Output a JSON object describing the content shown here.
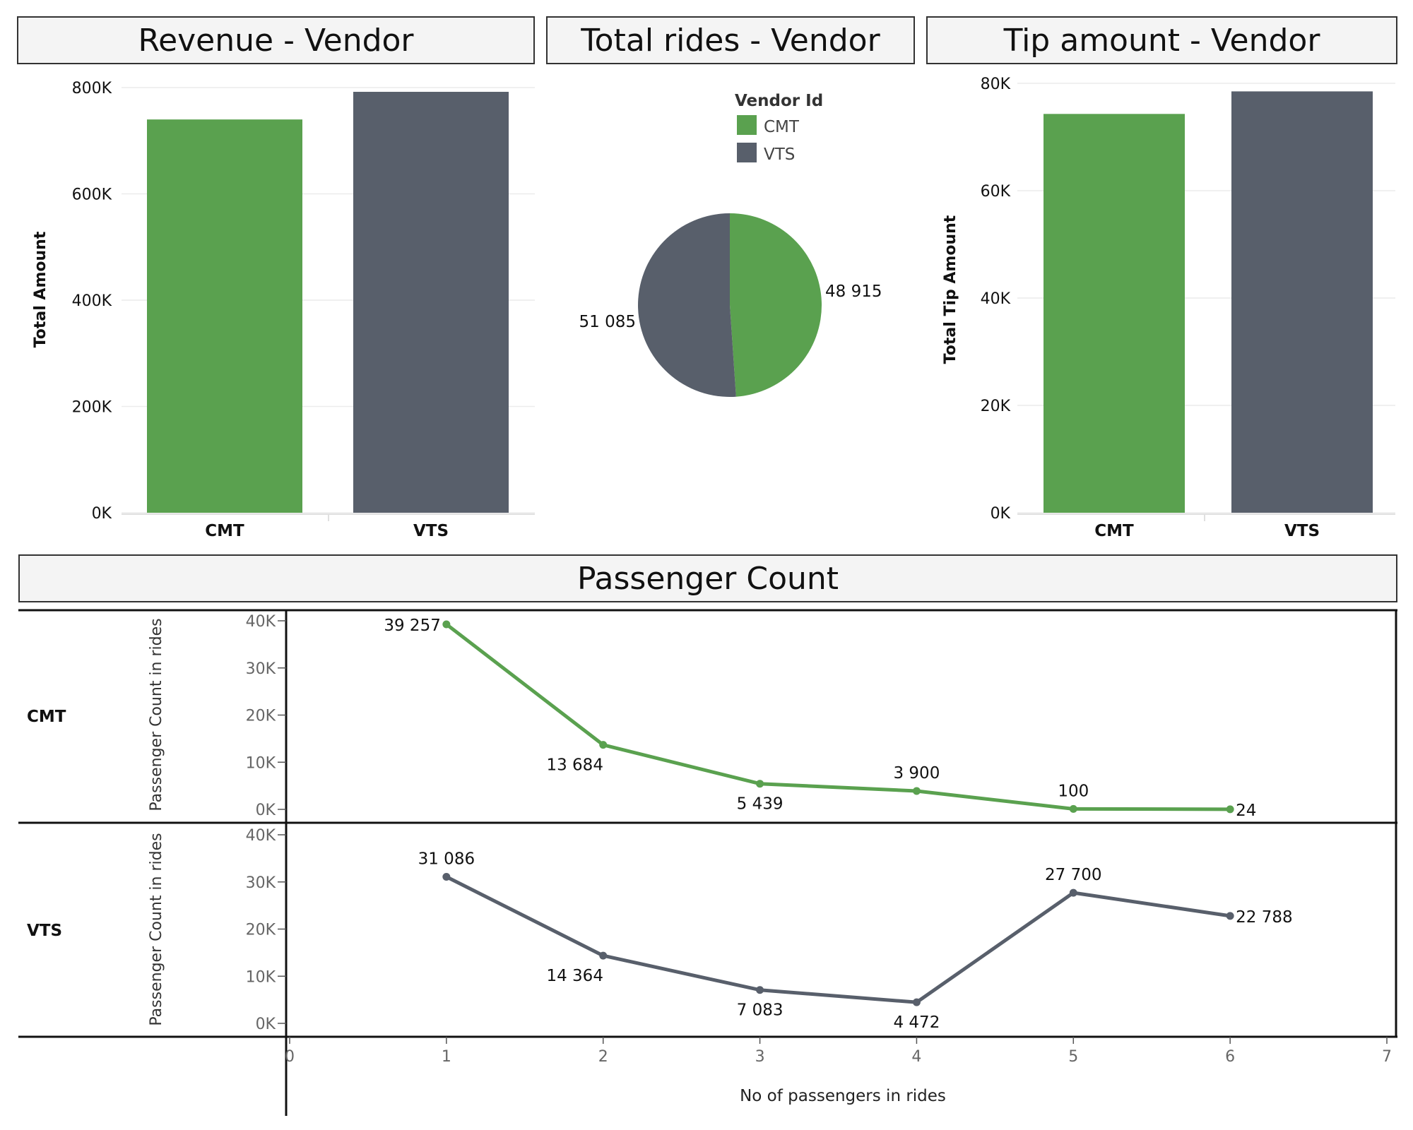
{
  "dashboard": {
    "revenue_title": "Revenue - Vendor",
    "rides_title": "Total rides - Vendor",
    "tip_title": "Tip amount - Vendor",
    "passenger_title": "Passenger Count"
  },
  "colors": {
    "CMT": "#5aa14f",
    "VTS": "#585f6b"
  },
  "chart_data": [
    {
      "type": "bar",
      "title": "Revenue - Vendor",
      "categories": [
        "CMT",
        "VTS"
      ],
      "values": [
        740000,
        792000
      ],
      "ylabel": "Total Amount",
      "ylim": [
        0,
        800000
      ],
      "yticks": [
        "0K",
        "200K",
        "400K",
        "600K",
        "800K"
      ]
    },
    {
      "type": "pie",
      "title": "Total rides - Vendor",
      "legend_title": "Vendor Id",
      "categories": [
        "CMT",
        "VTS"
      ],
      "values": [
        48915,
        51085
      ],
      "labels": [
        "48 915",
        "51 085"
      ]
    },
    {
      "type": "bar",
      "title": "Tip amount - Vendor",
      "categories": [
        "CMT",
        "VTS"
      ],
      "values": [
        74300,
        78500
      ],
      "ylabel": "Total Tip Amount",
      "ylim": [
        0,
        80000
      ],
      "yticks": [
        "0K",
        "20K",
        "40K",
        "60K",
        "80K"
      ]
    },
    {
      "type": "line",
      "title": "Passenger Count",
      "xlabel": "No of passengers in rides",
      "ylabel": "Passenger Count in rides",
      "xlim": [
        0,
        7
      ],
      "xticks": [
        "0",
        "1",
        "2",
        "3",
        "4",
        "5",
        "6",
        "7"
      ],
      "ylim": [
        0,
        40000
      ],
      "yticks": [
        "0K",
        "10K",
        "20K",
        "30K",
        "40K"
      ],
      "x": [
        1,
        2,
        3,
        4,
        5,
        6
      ],
      "series": [
        {
          "name": "CMT",
          "values": [
            39257,
            13684,
            5439,
            3900,
            100,
            24
          ],
          "labels": [
            "39 257",
            "13 684",
            "5 439",
            "3 900",
            "100",
            "24"
          ]
        },
        {
          "name": "VTS",
          "values": [
            31086,
            14364,
            7083,
            4472,
            27700,
            22788
          ],
          "labels": [
            "31 086",
            "14 364",
            "7 083",
            "4 472",
            "27 700",
            "22 788"
          ]
        }
      ]
    }
  ]
}
